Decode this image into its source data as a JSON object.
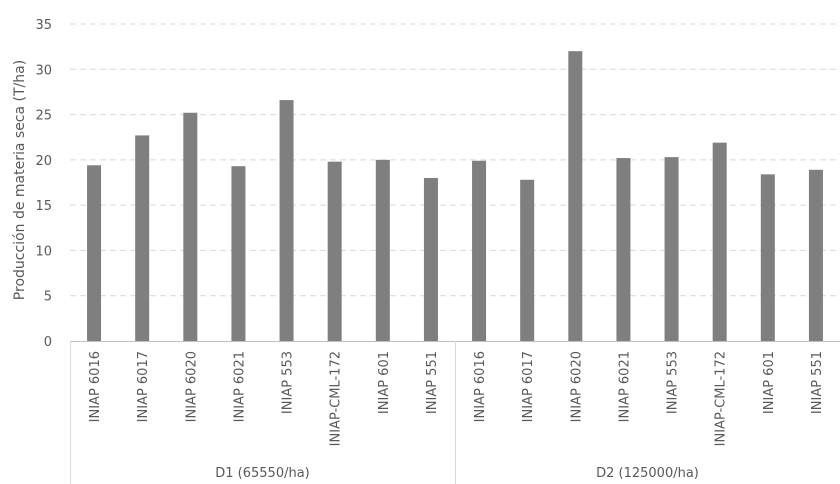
{
  "chart_data": {
    "type": "bar",
    "ylabel": "Producción de materia seca (T/ha)",
    "xlabel": "",
    "ylim": [
      0,
      35
    ],
    "yticks": [
      0,
      5,
      10,
      15,
      20,
      25,
      30,
      35
    ],
    "grid": true,
    "bar_color": "#7f7f7f",
    "groups": [
      {
        "label": "D1 (65550/ha)",
        "categories": [
          "INIAP 6016",
          "INIAP 6017",
          "INIAP 6020",
          "INIAP 6021",
          "INIAP 553",
          "INIAP-CML-172",
          "INIAP 601",
          "INIAP 551"
        ],
        "values": [
          19.4,
          22.7,
          25.2,
          19.3,
          26.6,
          19.8,
          20.0,
          18.0
        ]
      },
      {
        "label": "D2 (125000/ha)",
        "categories": [
          "INIAP 6016",
          "INIAP 6017",
          "INIAP 6020",
          "INIAP 6021",
          "INIAP 553",
          "INIAP-CML-172",
          "INIAP 601",
          "INIAP 551"
        ],
        "values": [
          19.9,
          17.8,
          32.0,
          20.2,
          20.3,
          21.9,
          18.4,
          18.9
        ]
      }
    ]
  }
}
